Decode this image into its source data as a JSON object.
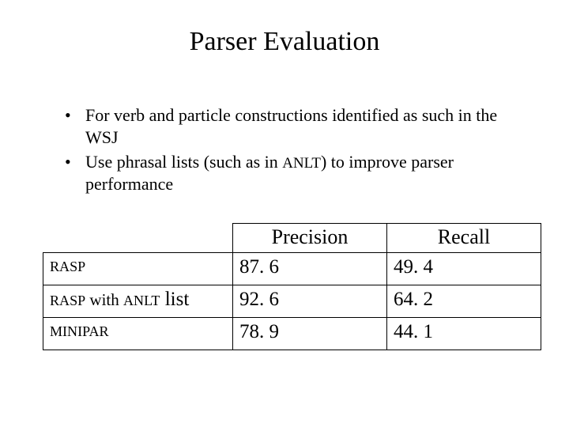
{
  "title": "Parser Evaluation",
  "bullets": [
    {
      "pre": "For verb and particle constructions identified as such in the WSJ"
    },
    {
      "pre": "Use phrasal lists (such as in ",
      "sc": "ANLT",
      "post": ") to improve parser performance"
    }
  ],
  "table": {
    "columns": [
      "",
      "Precision",
      "Recall"
    ],
    "rows": [
      {
        "label_sc": "RASP",
        "label_tail": "",
        "precision": "87. 6",
        "recall": "49. 4"
      },
      {
        "label_sc": "RASP",
        "label_mid": " with ",
        "label_sc2": "ANLT",
        "label_tail": " list",
        "precision": "92. 6",
        "recall": "64. 2"
      },
      {
        "label_sc": "MINIPAR",
        "label_tail": "",
        "precision": "78. 9",
        "recall": "44. 1"
      }
    ],
    "border_color": "#000000",
    "background_color": "#ffffff"
  }
}
